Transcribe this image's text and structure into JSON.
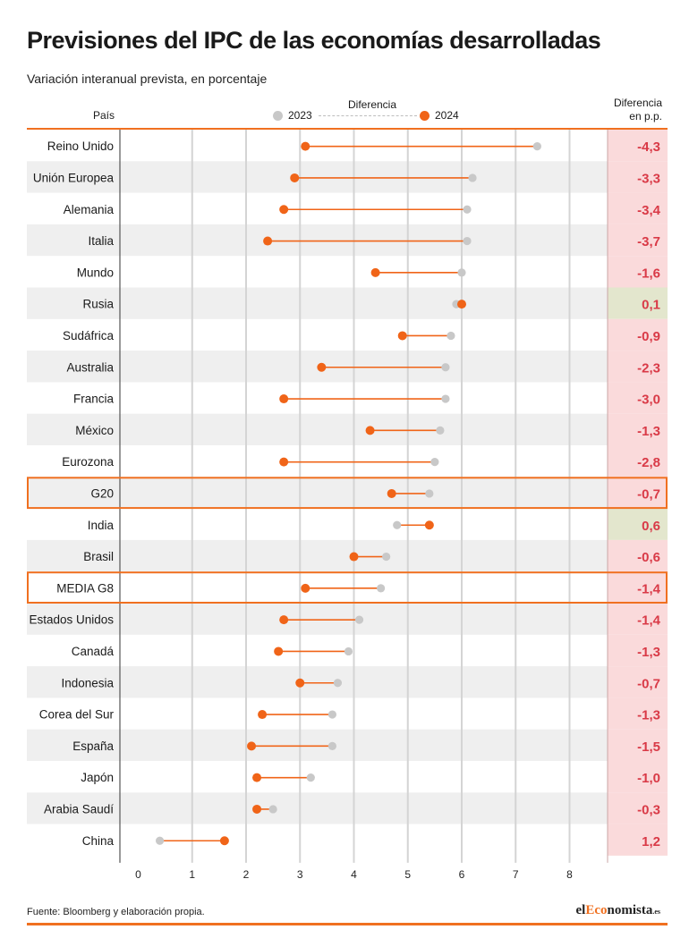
{
  "title": "Previsiones del IPC de las economías desarrolladas",
  "subtitle": "Variación interanual prevista, en porcentaje",
  "header": {
    "country_label": "País",
    "diff_label": "Diferencia",
    "diff_pp_line1": "Diferencia",
    "diff_pp_line2": "en p.p."
  },
  "source": "Fuente: Bloomberg y elaboración propia.",
  "logo": {
    "part1": "el",
    "accent": "Eco",
    "part2": "nomista",
    "suffix": ".es"
  },
  "colors": {
    "y2023": "#c8c8c8",
    "y2024": "#f06418",
    "negative_text": "#d93a47",
    "negative_bg": "#fadadb",
    "positive_bg": "#e3e6cd",
    "stripe": "#efefef",
    "highlight_border": "#f07020"
  },
  "chart_data": {
    "type": "dumbbell",
    "series": [
      {
        "name": "2023"
      },
      {
        "name": "2024"
      }
    ],
    "xlim": [
      0,
      8
    ],
    "xticks": [
      0,
      1,
      2,
      3,
      4,
      5,
      6,
      7,
      8
    ],
    "grid": true,
    "rows": [
      {
        "country": "Reino Unido",
        "v2023": 7.4,
        "v2024": 3.1,
        "diff": "-4,3"
      },
      {
        "country": "Unión Europea",
        "v2023": 6.2,
        "v2024": 2.9,
        "diff": "-3,3"
      },
      {
        "country": "Alemania",
        "v2023": 6.1,
        "v2024": 2.7,
        "diff": "-3,4"
      },
      {
        "country": "Italia",
        "v2023": 6.1,
        "v2024": 2.4,
        "diff": "-3,7"
      },
      {
        "country": "Mundo",
        "v2023": 6.0,
        "v2024": 4.4,
        "diff": "-1,6"
      },
      {
        "country": "Rusia",
        "v2023": 5.9,
        "v2024": 6.0,
        "diff": "0,1"
      },
      {
        "country": "Sudáfrica",
        "v2023": 5.8,
        "v2024": 4.9,
        "diff": "-0,9"
      },
      {
        "country": "Australia",
        "v2023": 5.7,
        "v2024": 3.4,
        "diff": "-2,3"
      },
      {
        "country": "Francia",
        "v2023": 5.7,
        "v2024": 2.7,
        "diff": "-3,0"
      },
      {
        "country": "México",
        "v2023": 5.6,
        "v2024": 4.3,
        "diff": "-1,3"
      },
      {
        "country": "Eurozona",
        "v2023": 5.5,
        "v2024": 2.7,
        "diff": "-2,8"
      },
      {
        "country": "G20",
        "v2023": 5.4,
        "v2024": 4.7,
        "diff": "-0,7",
        "highlight": true
      },
      {
        "country": "India",
        "v2023": 4.8,
        "v2024": 5.4,
        "diff": "0,6"
      },
      {
        "country": "Brasil",
        "v2023": 4.6,
        "v2024": 4.0,
        "diff": "-0,6"
      },
      {
        "country": "MEDIA G8",
        "v2023": 4.5,
        "v2024": 3.1,
        "diff": "-1,4",
        "highlight": true
      },
      {
        "country": "Estados Unidos",
        "v2023": 4.1,
        "v2024": 2.7,
        "diff": "-1,4"
      },
      {
        "country": "Canadá",
        "v2023": 3.9,
        "v2024": 2.6,
        "diff": "-1,3"
      },
      {
        "country": "Indonesia",
        "v2023": 3.7,
        "v2024": 3.0,
        "diff": "-0,7"
      },
      {
        "country": "Corea del Sur",
        "v2023": 3.6,
        "v2024": 2.3,
        "diff": "-1,3"
      },
      {
        "country": "España",
        "v2023": 3.6,
        "v2024": 2.1,
        "diff": "-1,5"
      },
      {
        "country": "Japón",
        "v2023": 3.2,
        "v2024": 2.2,
        "diff": "-1,0"
      },
      {
        "country": "Arabia Saudí",
        "v2023": 2.5,
        "v2024": 2.2,
        "diff": "-0,3"
      },
      {
        "country": "China",
        "v2023": 0.4,
        "v2024": 1.6,
        "diff": "1,2"
      }
    ]
  }
}
